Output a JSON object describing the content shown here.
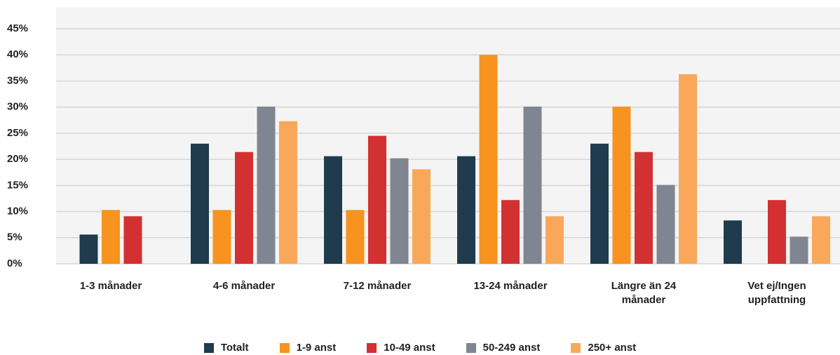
{
  "chart_data": {
    "type": "bar",
    "categories": [
      "1-3 månader",
      "4-6 månader",
      "7-12 månader",
      "13-24 månader",
      "Längre än 24 månader",
      "Vet ej/Ingen uppfattning"
    ],
    "series": [
      {
        "name": "Totalt",
        "color": "#1f3b4d",
        "values": [
          5.6,
          23.0,
          20.6,
          20.6,
          23.0,
          8.3
        ]
      },
      {
        "name": "1-9 anst",
        "color": "#f7931e",
        "values": [
          10.3,
          10.3,
          10.3,
          40.0,
          30.1,
          null
        ]
      },
      {
        "name": "10-49 anst",
        "color": "#d33131",
        "values": [
          9.1,
          21.4,
          24.5,
          12.2,
          21.4,
          12.2
        ]
      },
      {
        "name": "50-249 anst",
        "color": "#7f8591",
        "values": [
          null,
          30.1,
          20.2,
          30.1,
          15.1,
          5.2
        ]
      },
      {
        "name": "250+ anst",
        "color": "#f9a85a",
        "values": [
          null,
          27.3,
          18.1,
          9.1,
          36.3,
          9.1
        ]
      }
    ],
    "ylim": [
      0,
      45
    ],
    "yticks": [
      {
        "value": 0,
        "label": "0%"
      },
      {
        "value": 5,
        "label": "5%"
      },
      {
        "value": 10,
        "label": "10%"
      },
      {
        "value": 15,
        "label": "15%"
      },
      {
        "value": 20,
        "label": "20%"
      },
      {
        "value": 25,
        "label": "25%"
      },
      {
        "value": 30,
        "label": "30%"
      },
      {
        "value": 35,
        "label": "35%"
      },
      {
        "value": 40,
        "label": "40%"
      },
      {
        "value": 45,
        "label": "45%"
      }
    ],
    "grid": true,
    "legend": "bottom"
  }
}
